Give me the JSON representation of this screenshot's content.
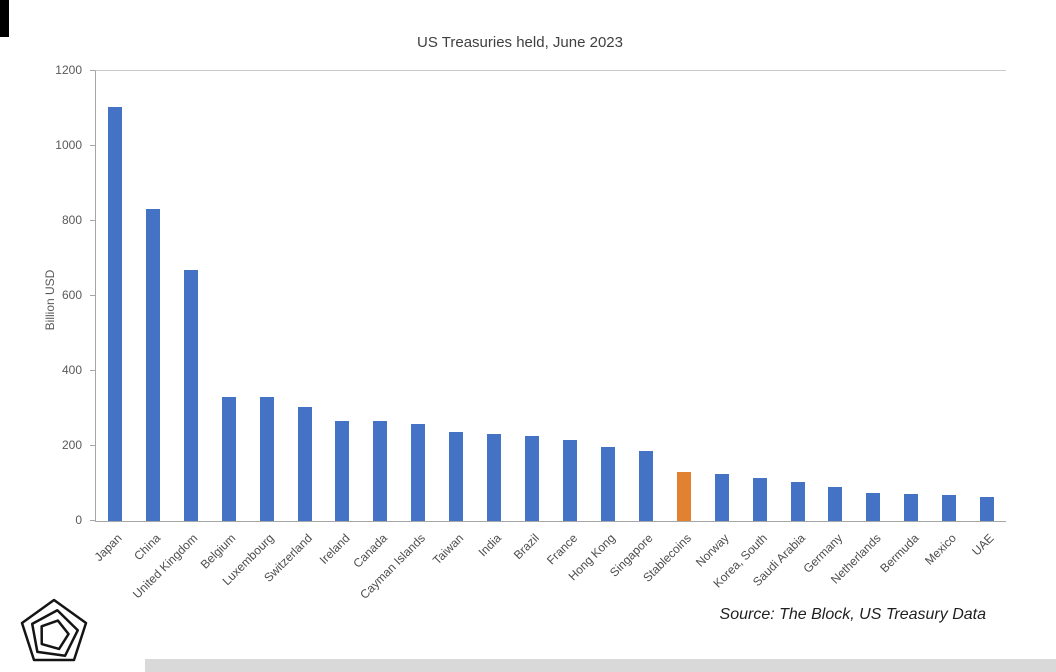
{
  "page": {
    "source_note": "Source: The Block, US Treasury Data"
  },
  "chart_data": {
    "type": "bar",
    "title": "US Treasuries held, June 2023",
    "xlabel": "",
    "ylabel": "Billion USD",
    "ylim": [
      0,
      1200
    ],
    "yticks": [
      0,
      200,
      400,
      600,
      800,
      1000,
      1200
    ],
    "grid": "top border only, left and bottom axis lines, outward y tick marks",
    "legend_position": "none",
    "categories": [
      "Japan",
      "China",
      "United Kingdom",
      "Belgium",
      "Luxembourg",
      "Switzerland",
      "Ireland",
      "Canada",
      "Cayman Islands",
      "Taiwan",
      "India",
      "Brazil",
      "France",
      "Hong Kong",
      "Singapore",
      "Stablecoins",
      "Norway",
      "Korea, South",
      "Saudi Arabia",
      "Germany",
      "Netherlands",
      "Bermuda",
      "Mexico",
      "UAE"
    ],
    "values": [
      1105,
      833,
      670,
      332,
      330,
      303,
      268,
      268,
      260,
      238,
      232,
      226,
      216,
      198,
      186,
      131,
      125,
      114,
      105,
      90,
      74,
      72,
      69,
      63
    ],
    "bar_color": "#4472C4",
    "highlight_category": "Stablecoins",
    "highlight_color": "#E2812F",
    "axis_color": "#A6A6A6",
    "text_color": "#595959"
  }
}
